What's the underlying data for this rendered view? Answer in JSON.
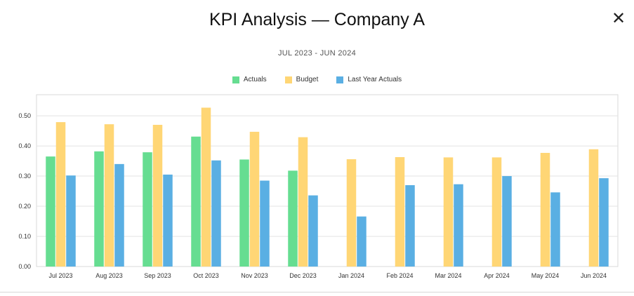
{
  "dialog": {
    "title": "KPI Analysis — Company A",
    "close_symbol": "✕"
  },
  "chart_data": {
    "type": "bar",
    "subtitle": "JUL 2023 - JUN 2024",
    "categories": [
      "Jul 2023",
      "Aug 2023",
      "Sep 2023",
      "Oct 2023",
      "Nov 2023",
      "Dec 2023",
      "Jan 2024",
      "Feb 2024",
      "Mar 2024",
      "Apr 2024",
      "May 2024",
      "Jun 2024"
    ],
    "series": [
      {
        "name": "Actuals",
        "color": "#66dd91",
        "values": [
          0.365,
          0.382,
          0.379,
          0.431,
          0.355,
          0.318,
          null,
          null,
          null,
          null,
          null,
          null
        ]
      },
      {
        "name": "Budget",
        "color": "#ffd675",
        "values": [
          0.479,
          0.472,
          0.47,
          0.527,
          0.447,
          0.429,
          0.356,
          0.363,
          0.362,
          0.362,
          0.377,
          0.389
        ]
      },
      {
        "name": "Last Year Actuals",
        "color": "#5aafe3",
        "values": [
          0.302,
          0.34,
          0.305,
          0.352,
          0.285,
          0.236,
          0.166,
          0.27,
          0.273,
          0.3,
          0.246,
          0.293
        ]
      }
    ],
    "yticks": [
      "0.00",
      "0.10",
      "0.20",
      "0.30",
      "0.40",
      "0.50"
    ],
    "ylim": [
      0,
      0.57
    ],
    "grid": true,
    "legend_position": "top-center"
  }
}
